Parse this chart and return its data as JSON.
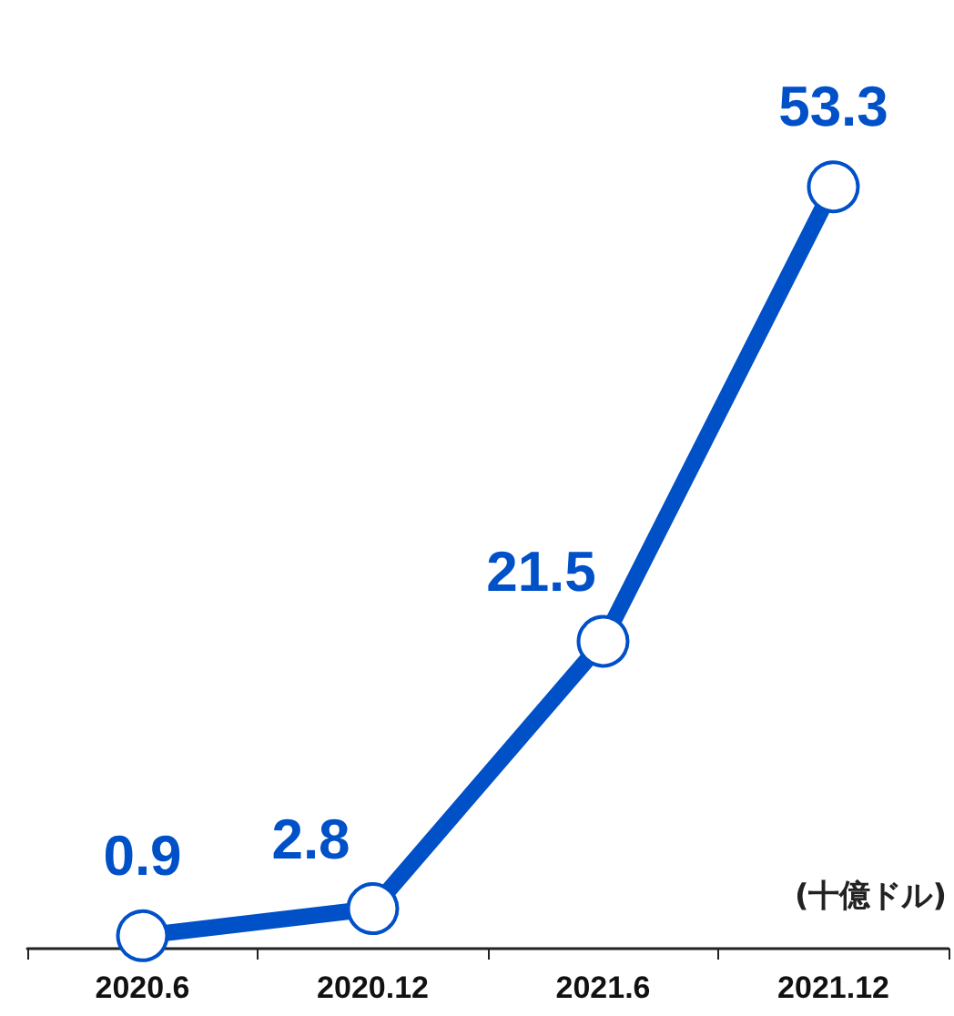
{
  "chart_data": {
    "type": "line",
    "categories": [
      "2020.6",
      "2020.12",
      "2021.6",
      "2021.12"
    ],
    "series": [
      {
        "color": "#0050c8",
        "values": [
          0.9,
          2.8,
          21.5,
          53.3
        ]
      }
    ],
    "ylabel": "(十億ドル)",
    "data_labels": true,
    "marker": "circle",
    "grid": false,
    "line_style": "solid"
  }
}
